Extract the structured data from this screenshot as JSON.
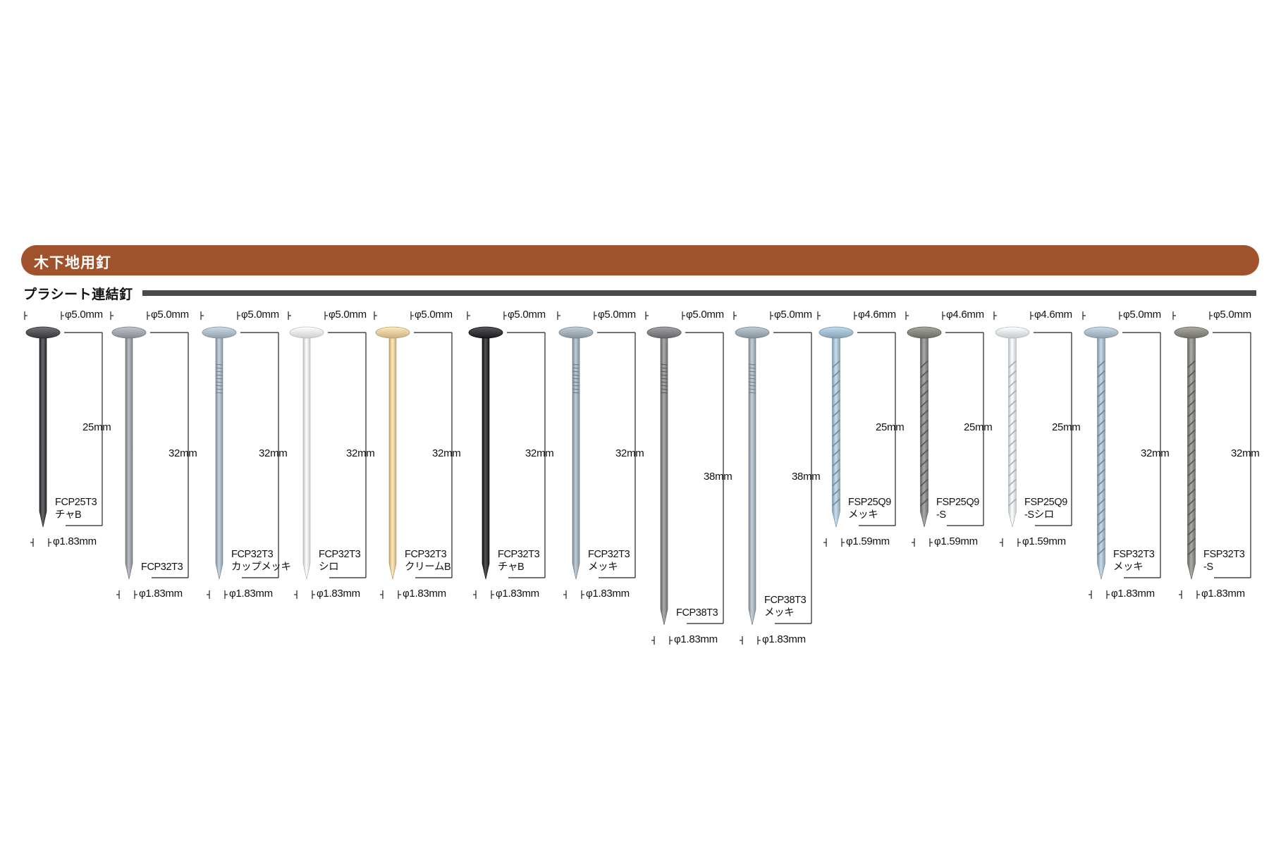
{
  "section_title": "木下地用釘",
  "subsection_title": "プラシート連結釘",
  "nails": [
    {
      "code": "FCP25T3",
      "finish": "チャB",
      "head_dia": "φ5.0mm",
      "length": "25mm",
      "shank_dia": "φ1.83mm",
      "length_mm": 25,
      "head_color": "#5a5a5e",
      "shank_color": "#4a4a4e",
      "shank_type": "plain"
    },
    {
      "code": "FCP32T3",
      "finish": "",
      "head_dia": "φ5.0mm",
      "length": "32mm",
      "shank_dia": "φ1.83mm",
      "length_mm": 32,
      "head_color": "#a9acb2",
      "shank_color": "#9ea2a8",
      "shank_type": "plain"
    },
    {
      "code": "FCP32T3",
      "finish": "カップメッキ",
      "head_dia": "φ5.0mm",
      "length": "32mm",
      "shank_dia": "φ1.83mm",
      "length_mm": 32,
      "head_color": "#b3c2cc",
      "shank_color": "#a6b6c2",
      "shank_type": "ringed"
    },
    {
      "code": "FCP32T3",
      "finish": "シロ",
      "head_dia": "φ5.0mm",
      "length": "32mm",
      "shank_dia": "φ1.83mm",
      "length_mm": 32,
      "head_color": "#eef0f2",
      "shank_color": "#e6e9ec",
      "shank_type": "plain"
    },
    {
      "code": "FCP32T3",
      "finish": "クリームB",
      "head_dia": "φ5.0mm",
      "length": "32mm",
      "shank_dia": "φ1.83mm",
      "length_mm": 32,
      "head_color": "#ecd2a6",
      "shank_color": "#e8cc9c",
      "shank_type": "plain"
    },
    {
      "code": "FCP32T3",
      "finish": "チャB",
      "head_dia": "φ5.0mm",
      "length": "32mm",
      "shank_dia": "φ1.83mm",
      "length_mm": 32,
      "head_color": "#3e3e42",
      "shank_color": "#36363a",
      "shank_type": "plain"
    },
    {
      "code": "FCP32T3",
      "finish": "メッキ",
      "head_dia": "φ5.0mm",
      "length": "32mm",
      "shank_dia": "φ1.83mm",
      "length_mm": 32,
      "head_color": "#aab6be",
      "shank_color": "#a2aeb8",
      "shank_type": "ringed"
    },
    {
      "code": "FCP38T3",
      "finish": "",
      "head_dia": "φ5.0mm",
      "length": "38mm",
      "shank_dia": "φ1.83mm",
      "length_mm": 38,
      "head_color": "#8a8a8e",
      "shank_color": "#8e8e92",
      "shank_type": "ringed"
    },
    {
      "code": "FCP38T3",
      "finish": "メッキ",
      "head_dia": "φ5.0mm",
      "length": "38mm",
      "shank_dia": "φ1.83mm",
      "length_mm": 38,
      "head_color": "#a8b4bc",
      "shank_color": "#a6b2bc",
      "shank_type": "ringed"
    },
    {
      "code": "FSP25Q9",
      "finish": "メッキ",
      "head_dia": "φ4.6mm",
      "length": "25mm",
      "shank_dia": "φ1.59mm",
      "length_mm": 25,
      "head_color": "#a9c3d6",
      "shank_color": "#a8c2d4",
      "shank_type": "screw"
    },
    {
      "code": "FSP25Q9",
      "finish": "-S",
      "head_dia": "φ4.6mm",
      "length": "25mm",
      "shank_dia": "φ1.59mm",
      "length_mm": 25,
      "head_color": "#8e8e86",
      "shank_color": "#8c8c88",
      "shank_type": "screw"
    },
    {
      "code": "FSP25Q9",
      "finish": "-Sシロ",
      "head_dia": "φ4.6mm",
      "length": "25mm",
      "shank_dia": "φ1.59mm",
      "length_mm": 25,
      "head_color": "#e6ecf0",
      "shank_color": "#e0e7ec",
      "shank_type": "screw"
    },
    {
      "code": "FSP32T3",
      "finish": "メッキ",
      "head_dia": "φ5.0mm",
      "length": "32mm",
      "shank_dia": "φ1.83mm",
      "length_mm": 32,
      "head_color": "#b2c4d0",
      "shank_color": "#aabccb",
      "shank_type": "screw"
    },
    {
      "code": "FSP32T3",
      "finish": "-S",
      "head_dia": "φ5.0mm",
      "length": "32mm",
      "shank_dia": "φ1.83mm",
      "length_mm": 32,
      "head_color": "#92928a",
      "shank_color": "#8e8e8a",
      "shank_type": "screw"
    }
  ]
}
